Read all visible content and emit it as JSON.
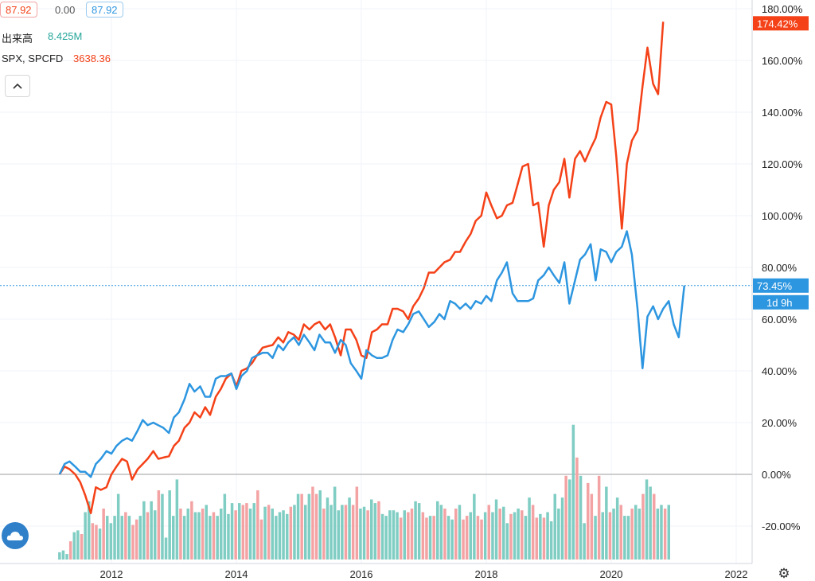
{
  "header": {
    "price_a": "87.92",
    "change": "0.00",
    "price_b": "87.92",
    "volume_label": "出来高",
    "volume_value": "8.425M",
    "compare_symbol": "SPX, SPCFD",
    "compare_value": "3638.36"
  },
  "colors": {
    "red": "#f44118",
    "blue": "#2d96e0",
    "vol_up": "#7fcdc3",
    "vol_down": "#f4a3a4"
  },
  "icons": {
    "collapse": "chevron-up-icon",
    "logo": "cloud-logo-icon",
    "settings": "gear-icon"
  },
  "chart_data": {
    "type": "line",
    "x_range": [
      2011.0,
      2022.3
    ],
    "y_range_percent": [
      -32,
      180
    ],
    "x_ticks": [
      "2012",
      "2014",
      "2016",
      "2018",
      "2020",
      "2022"
    ],
    "y_ticks": [
      "180.00%",
      "160.00%",
      "140.00%",
      "120.00%",
      "100.00%",
      "80.00%",
      "60.00%",
      "40.00%",
      "20.00%",
      "0.00%",
      "-20.00%"
    ],
    "price_labels": {
      "red": "174.42%",
      "blue": "73.45%",
      "countdown": "1d 9h"
    },
    "series": [
      {
        "color": "#f44118",
        "values": [
          [
            2011.17,
            0
          ],
          [
            2011.25,
            3
          ],
          [
            2011.33,
            2
          ],
          [
            2011.42,
            0
          ],
          [
            2011.5,
            -3
          ],
          [
            2011.58,
            -8
          ],
          [
            2011.67,
            -15
          ],
          [
            2011.75,
            -5
          ],
          [
            2011.83,
            -6
          ],
          [
            2011.92,
            -5
          ],
          [
            2012.0,
            0
          ],
          [
            2012.08,
            3
          ],
          [
            2012.17,
            6
          ],
          [
            2012.25,
            5
          ],
          [
            2012.33,
            -2
          ],
          [
            2012.42,
            2
          ],
          [
            2012.5,
            4
          ],
          [
            2012.58,
            6
          ],
          [
            2012.67,
            9
          ],
          [
            2012.75,
            6
          ],
          [
            2012.83,
            6.5
          ],
          [
            2012.92,
            7
          ],
          [
            2013.0,
            11
          ],
          [
            2013.08,
            13
          ],
          [
            2013.17,
            18
          ],
          [
            2013.25,
            20
          ],
          [
            2013.33,
            24
          ],
          [
            2013.42,
            22
          ],
          [
            2013.5,
            26
          ],
          [
            2013.58,
            23
          ],
          [
            2013.67,
            30
          ],
          [
            2013.75,
            33
          ],
          [
            2013.83,
            37
          ],
          [
            2013.92,
            39
          ],
          [
            2014.0,
            34
          ],
          [
            2014.08,
            40
          ],
          [
            2014.17,
            41
          ],
          [
            2014.25,
            43
          ],
          [
            2014.33,
            46
          ],
          [
            2014.42,
            49
          ],
          [
            2014.5,
            49.5
          ],
          [
            2014.58,
            50
          ],
          [
            2014.67,
            53
          ],
          [
            2014.75,
            51
          ],
          [
            2014.83,
            55
          ],
          [
            2014.92,
            54
          ],
          [
            2015.0,
            52
          ],
          [
            2015.08,
            58
          ],
          [
            2015.17,
            56
          ],
          [
            2015.25,
            58
          ],
          [
            2015.33,
            59
          ],
          [
            2015.42,
            56
          ],
          [
            2015.5,
            58
          ],
          [
            2015.58,
            53
          ],
          [
            2015.67,
            46
          ],
          [
            2015.75,
            56
          ],
          [
            2015.83,
            56
          ],
          [
            2015.92,
            52
          ],
          [
            2016.0,
            46
          ],
          [
            2016.08,
            45
          ],
          [
            2016.17,
            55
          ],
          [
            2016.25,
            56
          ],
          [
            2016.33,
            58
          ],
          [
            2016.42,
            58
          ],
          [
            2016.5,
            64
          ],
          [
            2016.58,
            64
          ],
          [
            2016.67,
            63
          ],
          [
            2016.75,
            60
          ],
          [
            2016.83,
            65
          ],
          [
            2016.92,
            68
          ],
          [
            2017.0,
            72
          ],
          [
            2017.08,
            78
          ],
          [
            2017.17,
            78
          ],
          [
            2017.25,
            80
          ],
          [
            2017.33,
            82
          ],
          [
            2017.42,
            83
          ],
          [
            2017.5,
            86
          ],
          [
            2017.58,
            86
          ],
          [
            2017.67,
            90
          ],
          [
            2017.75,
            93
          ],
          [
            2017.83,
            98
          ],
          [
            2017.92,
            100
          ],
          [
            2018.0,
            109
          ],
          [
            2018.08,
            104
          ],
          [
            2018.17,
            99
          ],
          [
            2018.25,
            100
          ],
          [
            2018.33,
            104
          ],
          [
            2018.42,
            105
          ],
          [
            2018.5,
            112
          ],
          [
            2018.58,
            119
          ],
          [
            2018.67,
            120
          ],
          [
            2018.75,
            104
          ],
          [
            2018.83,
            105
          ],
          [
            2018.92,
            88
          ],
          [
            2019.0,
            104
          ],
          [
            2019.08,
            110
          ],
          [
            2019.17,
            113
          ],
          [
            2019.25,
            122
          ],
          [
            2019.33,
            107
          ],
          [
            2019.42,
            122
          ],
          [
            2019.5,
            125
          ],
          [
            2019.58,
            121
          ],
          [
            2019.67,
            126
          ],
          [
            2019.75,
            130
          ],
          [
            2019.83,
            138
          ],
          [
            2019.92,
            144
          ],
          [
            2020.0,
            143
          ],
          [
            2020.08,
            123
          ],
          [
            2020.17,
            95
          ],
          [
            2020.25,
            120
          ],
          [
            2020.33,
            129
          ],
          [
            2020.42,
            133
          ],
          [
            2020.5,
            150
          ],
          [
            2020.58,
            165
          ],
          [
            2020.67,
            151
          ],
          [
            2020.75,
            147
          ],
          [
            2020.83,
            175
          ]
        ]
      },
      {
        "color": "#2d96e0",
        "values": [
          [
            2011.17,
            0
          ],
          [
            2011.25,
            4
          ],
          [
            2011.33,
            5
          ],
          [
            2011.42,
            3
          ],
          [
            2011.5,
            1
          ],
          [
            2011.58,
            1
          ],
          [
            2011.67,
            -1
          ],
          [
            2011.75,
            4
          ],
          [
            2011.83,
            6
          ],
          [
            2011.92,
            9
          ],
          [
            2012.0,
            8
          ],
          [
            2012.08,
            11
          ],
          [
            2012.17,
            13
          ],
          [
            2012.25,
            14
          ],
          [
            2012.33,
            13
          ],
          [
            2012.42,
            17
          ],
          [
            2012.5,
            21
          ],
          [
            2012.58,
            19
          ],
          [
            2012.67,
            20
          ],
          [
            2012.75,
            19
          ],
          [
            2012.83,
            18
          ],
          [
            2012.92,
            16
          ],
          [
            2013.0,
            22
          ],
          [
            2013.08,
            24
          ],
          [
            2013.17,
            29
          ],
          [
            2013.25,
            35
          ],
          [
            2013.33,
            32
          ],
          [
            2013.42,
            34
          ],
          [
            2013.5,
            30
          ],
          [
            2013.58,
            30
          ],
          [
            2013.67,
            37
          ],
          [
            2013.75,
            38
          ],
          [
            2013.83,
            38
          ],
          [
            2013.92,
            39
          ],
          [
            2014.0,
            33
          ],
          [
            2014.08,
            38
          ],
          [
            2014.17,
            40
          ],
          [
            2014.25,
            45
          ],
          [
            2014.33,
            46
          ],
          [
            2014.42,
            47
          ],
          [
            2014.5,
            47
          ],
          [
            2014.58,
            45
          ],
          [
            2014.67,
            50
          ],
          [
            2014.75,
            48
          ],
          [
            2014.83,
            51
          ],
          [
            2014.92,
            53
          ],
          [
            2015.0,
            50
          ],
          [
            2015.08,
            54
          ],
          [
            2015.17,
            51
          ],
          [
            2015.25,
            48
          ],
          [
            2015.33,
            54
          ],
          [
            2015.42,
            51
          ],
          [
            2015.5,
            51
          ],
          [
            2015.58,
            47
          ],
          [
            2015.67,
            52
          ],
          [
            2015.75,
            50
          ],
          [
            2015.83,
            43
          ],
          [
            2015.92,
            40
          ],
          [
            2016.0,
            37
          ],
          [
            2016.08,
            48
          ],
          [
            2016.17,
            46
          ],
          [
            2016.25,
            45
          ],
          [
            2016.33,
            45
          ],
          [
            2016.42,
            46
          ],
          [
            2016.5,
            52
          ],
          [
            2016.58,
            56
          ],
          [
            2016.67,
            55
          ],
          [
            2016.75,
            58
          ],
          [
            2016.83,
            62
          ],
          [
            2016.92,
            63
          ],
          [
            2017.0,
            60
          ],
          [
            2017.08,
            57
          ],
          [
            2017.17,
            59
          ],
          [
            2017.25,
            62
          ],
          [
            2017.33,
            60
          ],
          [
            2017.42,
            67
          ],
          [
            2017.5,
            66
          ],
          [
            2017.58,
            64
          ],
          [
            2017.67,
            66
          ],
          [
            2017.75,
            64
          ],
          [
            2017.83,
            67
          ],
          [
            2017.92,
            66
          ],
          [
            2018.0,
            69
          ],
          [
            2018.08,
            67
          ],
          [
            2018.17,
            75
          ],
          [
            2018.25,
            78
          ],
          [
            2018.33,
            82
          ],
          [
            2018.42,
            70
          ],
          [
            2018.5,
            67
          ],
          [
            2018.58,
            67
          ],
          [
            2018.67,
            67
          ],
          [
            2018.75,
            68
          ],
          [
            2018.83,
            75
          ],
          [
            2018.92,
            77
          ],
          [
            2019.0,
            80
          ],
          [
            2019.08,
            77
          ],
          [
            2019.17,
            74
          ],
          [
            2019.25,
            82
          ],
          [
            2019.33,
            66
          ],
          [
            2019.42,
            75
          ],
          [
            2019.5,
            83
          ],
          [
            2019.58,
            85
          ],
          [
            2019.67,
            89
          ],
          [
            2019.75,
            75
          ],
          [
            2019.83,
            87
          ],
          [
            2019.92,
            86
          ],
          [
            2020.0,
            82
          ],
          [
            2020.08,
            86
          ],
          [
            2020.17,
            88
          ],
          [
            2020.25,
            94
          ],
          [
            2020.33,
            85
          ],
          [
            2020.42,
            64
          ],
          [
            2020.5,
            41
          ],
          [
            2020.58,
            61
          ],
          [
            2020.67,
            65
          ],
          [
            2020.75,
            60
          ],
          [
            2020.83,
            64
          ],
          [
            2020.92,
            67
          ],
          [
            2021.0,
            58
          ],
          [
            2021.08,
            53
          ],
          [
            2021.17,
            73
          ]
        ]
      }
    ],
    "volume_percent_of_pane": [
      4,
      5,
      3,
      10,
      15,
      16,
      14,
      26,
      32,
      20,
      19,
      17,
      28,
      24,
      20,
      24,
      36,
      24,
      26,
      24,
      19,
      22,
      24,
      32,
      26,
      32,
      27,
      38,
      36,
      12,
      38,
      24,
      44,
      28,
      24,
      28,
      32,
      26,
      26,
      28,
      30,
      24,
      26,
      24,
      28,
      36,
      25,
      31,
      27,
      31,
      30,
      31,
      28,
      31,
      38,
      22,
      29,
      30,
      28,
      24,
      26,
      27,
      25,
      29,
      30,
      36,
      36,
      30,
      36,
      40,
      36,
      38,
      28,
      34,
      30,
      40,
      27,
      30,
      30,
      34,
      30,
      40,
      28,
      29,
      27,
      33,
      31,
      32,
      25,
      24,
      27,
      27,
      26,
      23,
      27,
      26,
      28,
      32,
      31,
      26,
      23,
      24,
      24,
      32,
      30,
      28,
      24,
      22,
      28,
      30,
      22,
      24,
      26,
      36,
      24,
      22,
      26,
      30,
      26,
      33,
      28,
      29,
      20,
      25,
      26,
      28,
      27,
      24,
      34,
      30,
      23,
      25,
      23,
      26,
      21,
      36,
      28,
      34,
      46,
      44,
      74,
      56,
      46,
      20,
      42,
      36,
      24,
      46,
      26,
      40,
      26,
      28,
      34,
      30,
      24,
      24,
      28,
      30,
      28,
      36,
      44,
      40,
      36,
      28,
      30,
      28,
      30
    ]
  }
}
